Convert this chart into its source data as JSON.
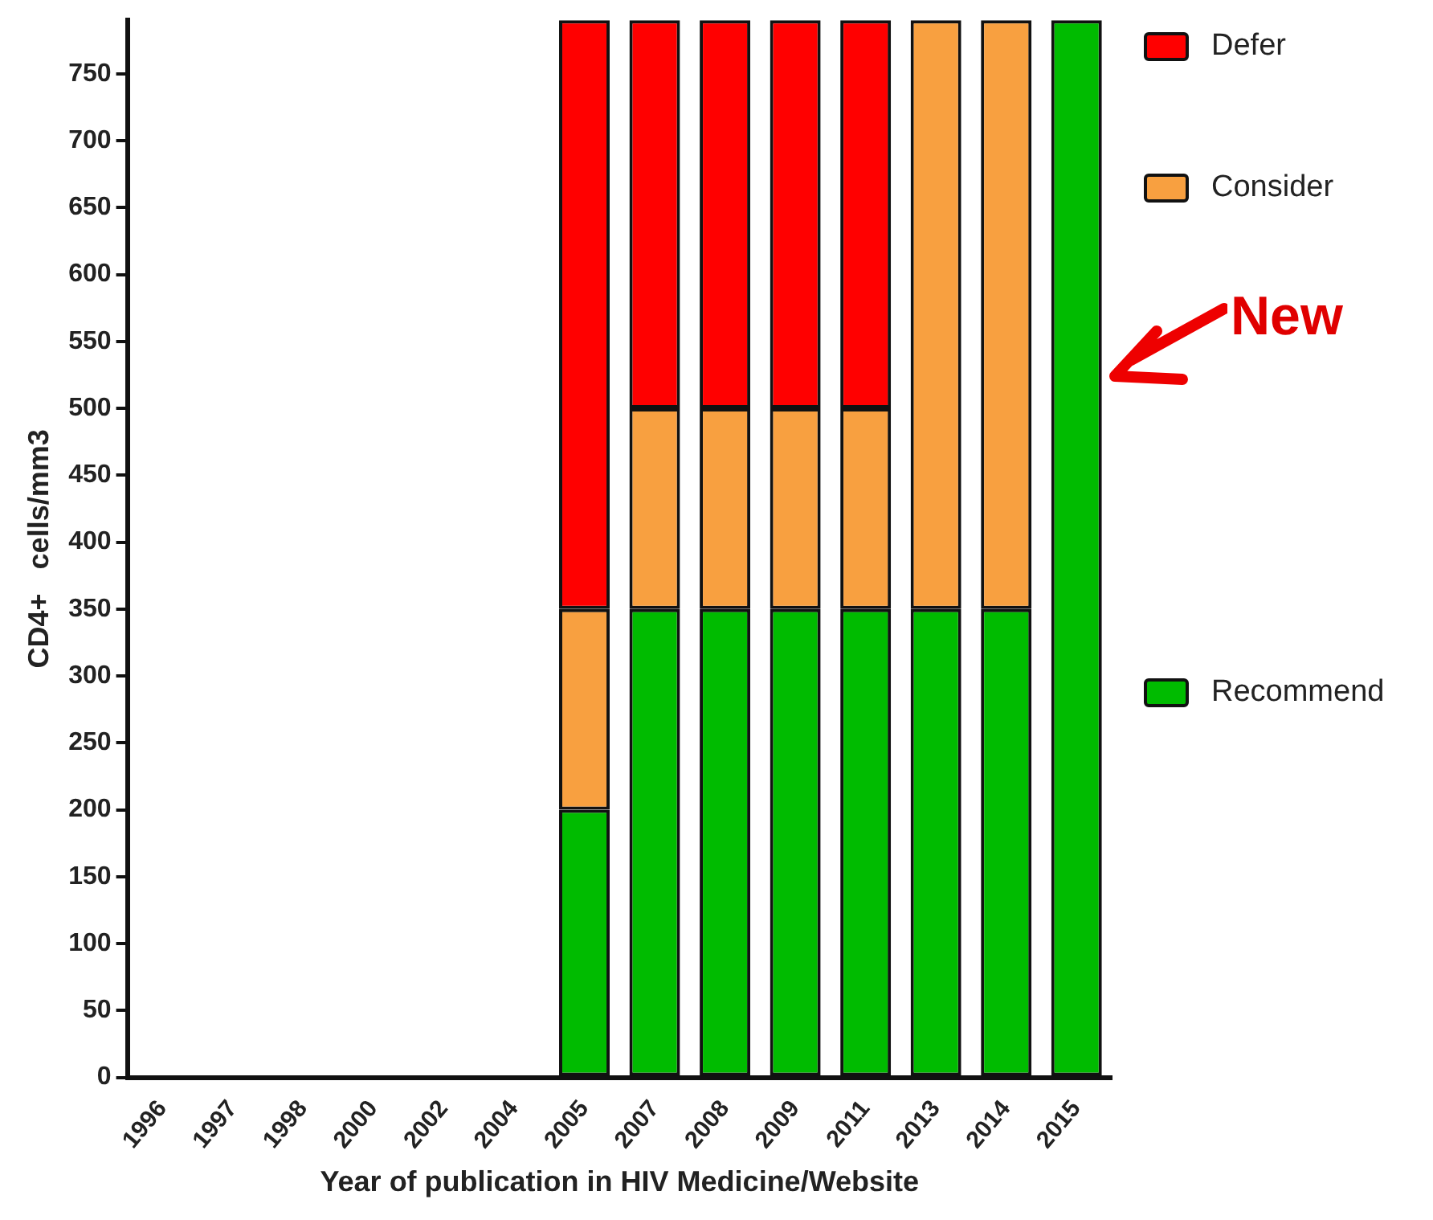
{
  "chart_data": {
    "type": "bar",
    "stacked": true,
    "xlabel": "Year of publication in HIV Medicine/Website",
    "ylabel": "CD4+   cells/mm3",
    "categories": [
      "1996",
      "1997",
      "1998",
      "2000",
      "2002",
      "2004",
      "2005",
      "2007",
      "2008",
      "2009",
      "2011",
      "2013",
      "2014",
      "2015"
    ],
    "series": [
      {
        "name": "Recommend",
        "color": "#00bb00",
        "values": [
          null,
          null,
          null,
          null,
          null,
          null,
          200,
          350,
          350,
          350,
          350,
          350,
          350,
          790
        ]
      },
      {
        "name": "Consider",
        "color": "#f8a040",
        "values": [
          null,
          null,
          null,
          null,
          null,
          null,
          150,
          150,
          150,
          150,
          150,
          440,
          440,
          null
        ]
      },
      {
        "name": "Defer",
        "color": "#ff0000",
        "values": [
          null,
          null,
          null,
          null,
          null,
          null,
          440,
          290,
          290,
          290,
          290,
          null,
          null,
          null
        ]
      }
    ],
    "ylim": [
      0,
      790
    ],
    "yticks": [
      0,
      50,
      100,
      150,
      200,
      250,
      300,
      350,
      400,
      450,
      500,
      550,
      600,
      650,
      700,
      750
    ],
    "grid": false,
    "legend": "right",
    "annotations": [
      "New"
    ]
  }
}
